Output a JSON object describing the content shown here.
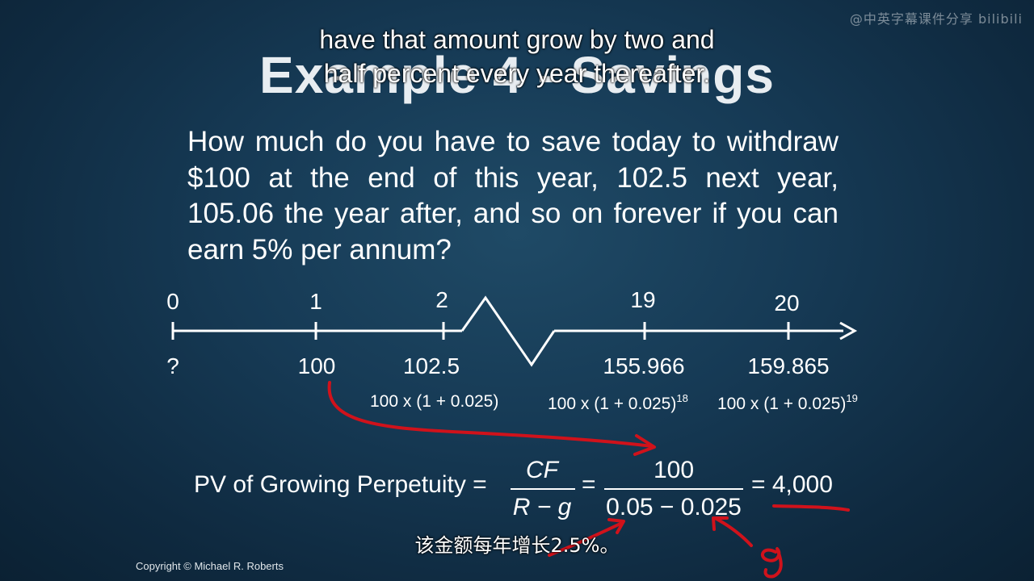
{
  "watermark": "@中英字幕课件分享 bilibili",
  "slide": {
    "title": "Example 4 - Savings",
    "question": "How much do you have to save today to withdraw $100 at the end of this year, 102.5 next year, 105.06 the year after, and so on forever if you can earn 5% per annum?",
    "timeline": {
      "periods": [
        "0",
        "1",
        "2",
        "19",
        "20"
      ],
      "cash_flows": [
        "?",
        "100",
        "102.5",
        "155.966",
        "159.865"
      ],
      "formulas": {
        "f2": "100 x (1 + 0.025)",
        "f19_base": "100 x (1 + 0.025)",
        "f19_exp": "18",
        "f20_base": "100 x (1 + 0.025)",
        "f20_exp": "19"
      }
    },
    "pv": {
      "label": "PV of Growing Perpetuity =",
      "num1": "CF",
      "den1": "R − g",
      "eq": "=",
      "num2": "100",
      "den2": "0.05 − 0.025",
      "result": "= 4,000"
    },
    "copyright": "Copyright © Michael R. Roberts"
  },
  "subtitles": {
    "top_line1": "have that amount grow by two and",
    "top_line2": "half percent every year thereafter.",
    "bottom": "该金额每年增长2.5%。"
  },
  "colors": {
    "background": "#163a55",
    "annotation_red": "#d0121b",
    "text": "#ffffff"
  }
}
